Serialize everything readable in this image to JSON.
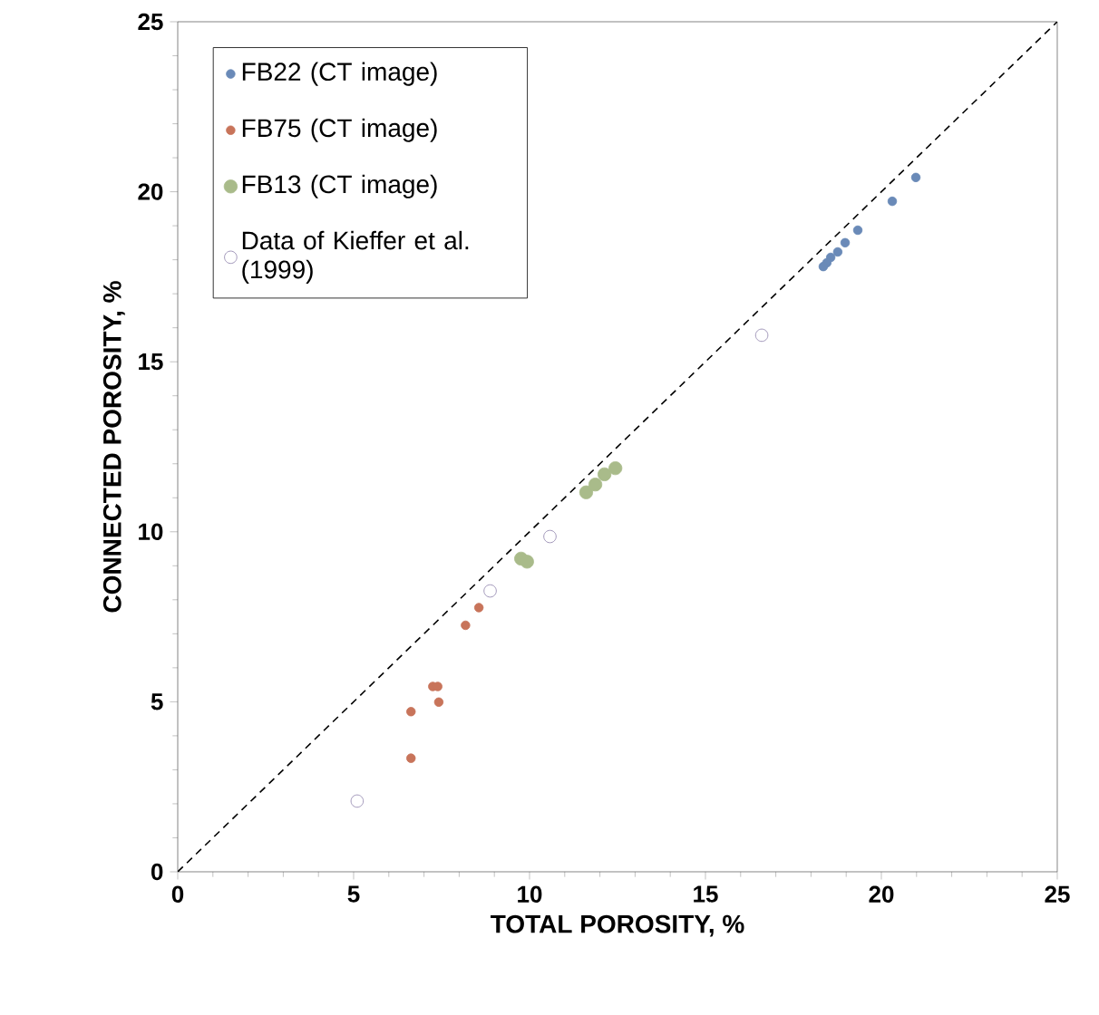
{
  "chart_data": {
    "type": "scatter",
    "xlabel": "TOTAL POROSITY, %",
    "ylabel": "CONNECTED POROSITY, %",
    "xlim": [
      0,
      25
    ],
    "ylim": [
      0,
      25
    ],
    "xticks": [
      0,
      5,
      10,
      15,
      20,
      25
    ],
    "yticks": [
      0,
      5,
      10,
      15,
      20,
      25
    ],
    "legend": "top left",
    "series": [
      {
        "name": "FB22 (CT image)",
        "color": "#6a8ab8",
        "marker": "circle",
        "x": [
          20.98,
          20.31,
          19.33,
          18.97,
          18.76,
          18.56,
          18.45,
          18.35
        ],
        "values": [
          20.42,
          19.72,
          18.87,
          18.5,
          18.23,
          18.07,
          17.91,
          17.8
        ]
      },
      {
        "name": "FB75 (CT image)",
        "color": "#c8745a",
        "marker": "circle",
        "x": [
          8.56,
          8.18,
          7.25,
          7.39,
          7.42,
          6.63,
          6.63
        ],
        "values": [
          7.77,
          7.25,
          5.45,
          5.45,
          4.99,
          4.71,
          3.34
        ]
      },
      {
        "name": "FB13 (CT image)",
        "color": "#a9bb8a",
        "marker": "circle",
        "x": [
          9.76,
          9.93,
          11.61,
          11.87,
          12.13,
          12.44
        ],
        "values": [
          9.21,
          9.12,
          11.16,
          11.39,
          11.69,
          11.87
        ]
      },
      {
        "name": "Data of Kieffer et al. (1999)",
        "color": "#8a7ea8",
        "marker": "circle",
        "x": [
          16.6,
          10.58,
          8.88,
          5.1
        ],
        "values": [
          15.78,
          9.86,
          8.26,
          2.08
        ]
      },
      {
        "type": "line",
        "color": "#000000",
        "line_style": "dashed",
        "marker": "none",
        "x": [
          0,
          25
        ],
        "values": [
          0,
          25
        ]
      }
    ]
  }
}
